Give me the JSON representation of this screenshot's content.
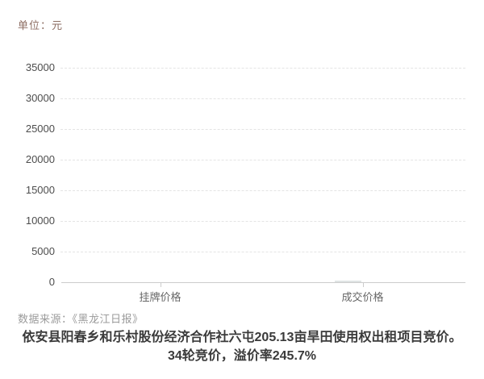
{
  "unit_label": "单位：元",
  "source_label": "数据来源：《黑龙江日报》",
  "caption": {
    "line1": "依安县阳春乡和乐村股份经济合作社六屯205.13亩旱田使用权出租项目竞价。",
    "line2": "34轮竞价，溢价率245.7%"
  },
  "chart_data": {
    "type": "bar",
    "title": "",
    "unit": "元",
    "categories": [
      "挂牌价格",
      "成交价格"
    ],
    "series": [
      {
        "name": "价格",
        "values": [
          null,
          null
        ]
      }
    ],
    "bars_rendered": false,
    "ylim": [
      0,
      35000
    ],
    "y_ticks": [
      0,
      5000,
      10000,
      15000,
      20000,
      25000,
      30000,
      35000
    ],
    "xlabel": "",
    "ylabel": "",
    "grid": "horizontal-dashed",
    "legend_position": "none"
  },
  "colors": {
    "background": "#ffffff",
    "unit_label_text": "#8d6e63",
    "y_tick_text": "#4d4d4d",
    "x_category_text": "#666666",
    "gridline": "#e4e4e4",
    "axis_line": "#cccccc",
    "source_text": "#9b9b9b",
    "caption_text": "#3a3a3a"
  }
}
